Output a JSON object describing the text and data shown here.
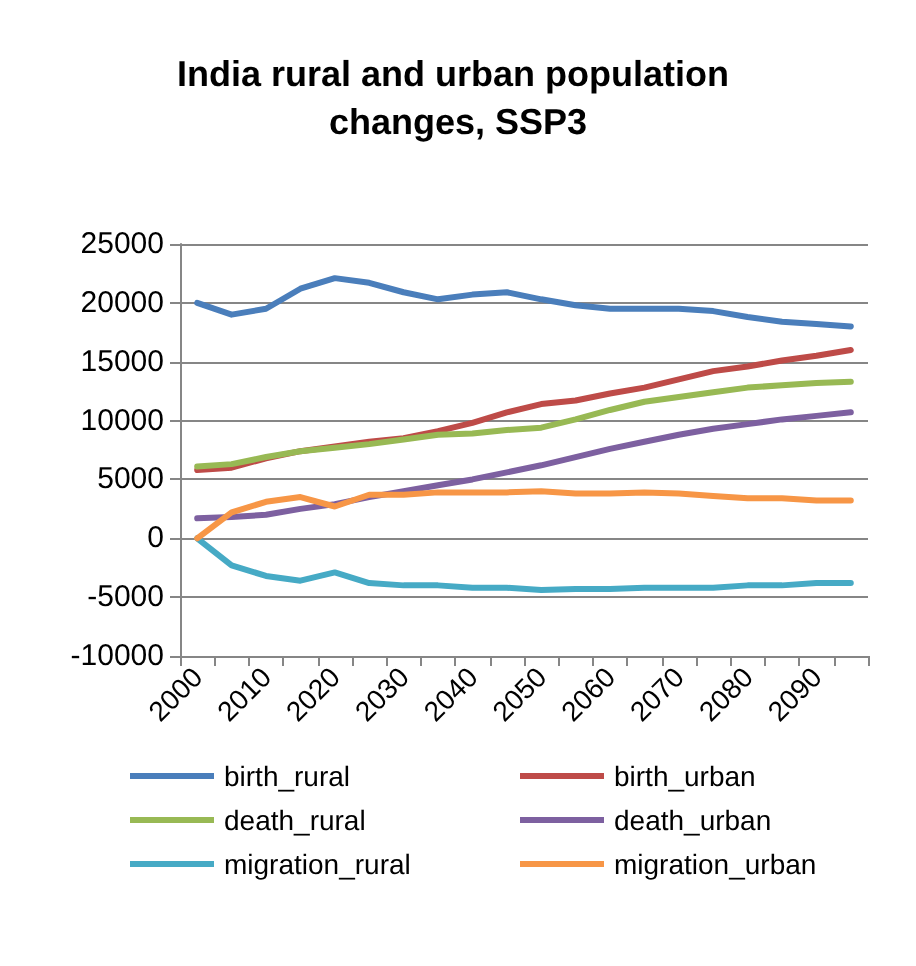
{
  "chart_data": {
    "type": "line",
    "title": "India rural and urban population changes, SSP3",
    "categories": [
      "2000",
      null,
      "2010",
      null,
      "2020",
      null,
      "2030",
      null,
      "2040",
      null,
      "2050",
      null,
      "2060",
      null,
      "2070",
      null,
      "2080",
      null,
      "2090",
      null
    ],
    "series": [
      {
        "name": "birth_rural",
        "color": "#4a7ebb",
        "values": [
          20000,
          19000,
          19500,
          21200,
          22100,
          21700,
          20900,
          20300,
          20700,
          20900,
          20300,
          19800,
          19500,
          19500,
          19500,
          19300,
          18800,
          18400,
          18200,
          18000
        ]
      },
      {
        "name": "birth_urban",
        "color": "#be4b48",
        "values": [
          5800,
          6000,
          6800,
          7400,
          7800,
          8200,
          8500,
          9100,
          9800,
          10700,
          11400,
          11700,
          12300,
          12800,
          13500,
          14200,
          14600,
          15100,
          15500,
          16000
        ]
      },
      {
        "name": "death_rural",
        "color": "#98b954",
        "values": [
          6100,
          6300,
          6900,
          7400,
          7700,
          8000,
          8400,
          8800,
          8900,
          9200,
          9400,
          10100,
          10900,
          11600,
          12000,
          12400,
          12800,
          13000,
          13200,
          13300
        ]
      },
      {
        "name": "death_urban",
        "color": "#7d60a0",
        "values": [
          1700,
          1800,
          2000,
          2500,
          2900,
          3500,
          4000,
          4500,
          5000,
          5600,
          6200,
          6900,
          7600,
          8200,
          8800,
          9300,
          9700,
          10100,
          10400,
          10700
        ]
      },
      {
        "name": "migration_rural",
        "color": "#46aac5",
        "values": [
          0,
          -2300,
          -3200,
          -3600,
          -2900,
          -3800,
          -4000,
          -4000,
          -4200,
          -4200,
          -4400,
          -4300,
          -4300,
          -4200,
          -4200,
          -4200,
          -4000,
          -4000,
          -3800,
          -3800
        ]
      },
      {
        "name": "migration_urban",
        "color": "#f79646",
        "values": [
          0,
          2200,
          3100,
          3500,
          2700,
          3700,
          3700,
          3900,
          3900,
          3900,
          4000,
          3800,
          3800,
          3900,
          3800,
          3600,
          3400,
          3400,
          3200,
          3200
        ]
      }
    ],
    "ylim": [
      -10000,
      25000
    ],
    "yticks": [
      -10000,
      -5000,
      0,
      5000,
      10000,
      15000,
      20000,
      25000
    ],
    "grid": "y",
    "legend": "bottom",
    "marker": "none",
    "line_style": "solid"
  }
}
